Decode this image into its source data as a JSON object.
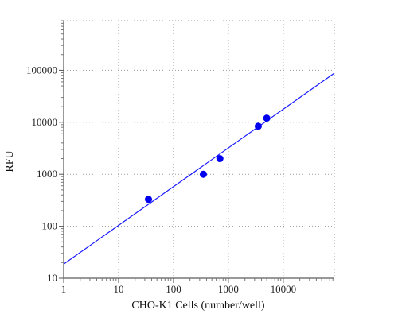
{
  "chart_data": {
    "type": "scatter",
    "xlabel": "CHO-K1 Cells (number/well)",
    "ylabel": "RFU",
    "x_scale": "log",
    "y_scale": "log",
    "xlim": [
      1,
      85000
    ],
    "ylim": [
      10,
      900000
    ],
    "x_ticks": [
      1,
      10,
      100,
      1000,
      10000
    ],
    "x_tick_labels": [
      "1",
      "10",
      "100",
      "1000",
      "10000"
    ],
    "y_ticks": [
      10,
      100,
      1000,
      10000,
      100000
    ],
    "y_tick_labels": [
      "10",
      "100",
      "1000",
      "10000",
      "100000"
    ],
    "grid": true,
    "point_color": "#0000ee",
    "fit_color": "#1a1aff",
    "points": [
      {
        "x": 35,
        "y": 330
      },
      {
        "x": 350,
        "y": 1000
      },
      {
        "x": 700,
        "y": 2000
      },
      {
        "x": 3500,
        "y": 8400
      },
      {
        "x": 5000,
        "y": 12000
      }
    ],
    "fit_line": {
      "x": [
        1,
        85000
      ],
      "y": [
        18.7,
        88000
      ]
    }
  }
}
